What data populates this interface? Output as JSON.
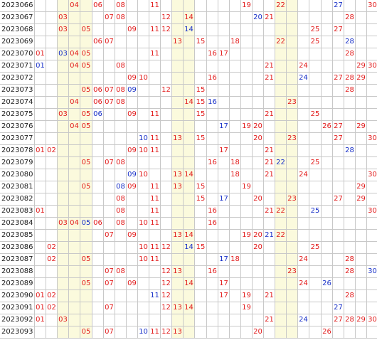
{
  "colors": {
    "red": "#e21b1b",
    "blue": "#1830c8",
    "highlight": "#fbfadd",
    "grid": "#c8c8c8"
  },
  "highlight_columns": [
    3,
    4,
    5,
    13,
    14,
    22,
    23
  ],
  "rows": [
    {
      "period": "2023066",
      "numbers": [
        {
          "n": "04",
          "c": "r"
        },
        {
          "n": "06",
          "c": "r"
        },
        {
          "n": "08",
          "c": "r"
        },
        {
          "n": "11",
          "c": "r"
        },
        {
          "n": "19",
          "c": "r"
        },
        {
          "n": "22",
          "c": "r"
        },
        {
          "n": "27",
          "c": "b"
        },
        {
          "n": "30",
          "c": "r"
        }
      ]
    },
    {
      "period": "2023067",
      "numbers": [
        {
          "n": "03",
          "c": "r"
        },
        {
          "n": "07",
          "c": "r"
        },
        {
          "n": "08",
          "c": "r"
        },
        {
          "n": "12",
          "c": "r"
        },
        {
          "n": "14",
          "c": "r"
        },
        {
          "n": "20",
          "c": "b"
        },
        {
          "n": "21",
          "c": "r"
        },
        {
          "n": "28",
          "c": "r"
        }
      ]
    },
    {
      "period": "2023068",
      "numbers": [
        {
          "n": "03",
          "c": "r"
        },
        {
          "n": "05",
          "c": "r"
        },
        {
          "n": "09",
          "c": "r"
        },
        {
          "n": "11",
          "c": "r"
        },
        {
          "n": "12",
          "c": "r"
        },
        {
          "n": "14",
          "c": "b"
        },
        {
          "n": "25",
          "c": "r"
        },
        {
          "n": "27",
          "c": "r"
        }
      ]
    },
    {
      "period": "2023069",
      "numbers": [
        {
          "n": "06",
          "c": "r"
        },
        {
          "n": "07",
          "c": "r"
        },
        {
          "n": "13",
          "c": "r"
        },
        {
          "n": "15",
          "c": "r"
        },
        {
          "n": "18",
          "c": "r"
        },
        {
          "n": "22",
          "c": "r"
        },
        {
          "n": "25",
          "c": "r"
        },
        {
          "n": "28",
          "c": "b"
        }
      ]
    },
    {
      "period": "2023070",
      "numbers": [
        {
          "n": "01",
          "c": "r"
        },
        {
          "n": "03",
          "c": "b"
        },
        {
          "n": "04",
          "c": "r"
        },
        {
          "n": "05",
          "c": "r"
        },
        {
          "n": "11",
          "c": "r"
        },
        {
          "n": "16",
          "c": "r"
        },
        {
          "n": "17",
          "c": "r"
        },
        {
          "n": "28",
          "c": "r"
        }
      ]
    },
    {
      "period": "2023071",
      "numbers": [
        {
          "n": "01",
          "c": "b"
        },
        {
          "n": "04",
          "c": "r"
        },
        {
          "n": "05",
          "c": "r"
        },
        {
          "n": "08",
          "c": "r"
        },
        {
          "n": "21",
          "c": "r"
        },
        {
          "n": "24",
          "c": "r"
        },
        {
          "n": "29",
          "c": "r"
        },
        {
          "n": "30",
          "c": "r"
        }
      ]
    },
    {
      "period": "2023072",
      "numbers": [
        {
          "n": "09",
          "c": "r"
        },
        {
          "n": "10",
          "c": "r"
        },
        {
          "n": "16",
          "c": "r"
        },
        {
          "n": "21",
          "c": "r"
        },
        {
          "n": "24",
          "c": "b"
        },
        {
          "n": "27",
          "c": "r"
        },
        {
          "n": "28",
          "c": "r"
        },
        {
          "n": "29",
          "c": "r"
        }
      ]
    },
    {
      "period": "2023073",
      "numbers": [
        {
          "n": "05",
          "c": "r"
        },
        {
          "n": "06",
          "c": "r"
        },
        {
          "n": "07",
          "c": "r"
        },
        {
          "n": "08",
          "c": "r"
        },
        {
          "n": "09",
          "c": "b"
        },
        {
          "n": "12",
          "c": "r"
        },
        {
          "n": "15",
          "c": "r"
        },
        {
          "n": "28",
          "c": "r"
        }
      ]
    },
    {
      "period": "2023074",
      "numbers": [
        {
          "n": "04",
          "c": "r"
        },
        {
          "n": "06",
          "c": "r"
        },
        {
          "n": "07",
          "c": "r"
        },
        {
          "n": "08",
          "c": "r"
        },
        {
          "n": "14",
          "c": "r"
        },
        {
          "n": "15",
          "c": "r"
        },
        {
          "n": "16",
          "c": "b"
        },
        {
          "n": "23",
          "c": "r"
        }
      ]
    },
    {
      "period": "2023075",
      "numbers": [
        {
          "n": "03",
          "c": "r"
        },
        {
          "n": "05",
          "c": "r"
        },
        {
          "n": "06",
          "c": "b"
        },
        {
          "n": "09",
          "c": "r"
        },
        {
          "n": "11",
          "c": "r"
        },
        {
          "n": "15",
          "c": "r"
        },
        {
          "n": "21",
          "c": "r"
        },
        {
          "n": "25",
          "c": "r"
        }
      ]
    },
    {
      "period": "2023076",
      "numbers": [
        {
          "n": "04",
          "c": "r"
        },
        {
          "n": "05",
          "c": "r"
        },
        {
          "n": "17",
          "c": "b"
        },
        {
          "n": "19",
          "c": "r"
        },
        {
          "n": "20",
          "c": "r"
        },
        {
          "n": "26",
          "c": "r"
        },
        {
          "n": "27",
          "c": "r"
        },
        {
          "n": "29",
          "c": "r"
        }
      ]
    },
    {
      "period": "2023077",
      "numbers": [
        {
          "n": "10",
          "c": "b"
        },
        {
          "n": "11",
          "c": "r"
        },
        {
          "n": "13",
          "c": "r"
        },
        {
          "n": "15",
          "c": "r"
        },
        {
          "n": "20",
          "c": "r"
        },
        {
          "n": "23",
          "c": "r"
        },
        {
          "n": "27",
          "c": "r"
        },
        {
          "n": "30",
          "c": "r"
        }
      ]
    },
    {
      "period": "2023078",
      "numbers": [
        {
          "n": "01",
          "c": "r"
        },
        {
          "n": "02",
          "c": "r"
        },
        {
          "n": "09",
          "c": "r"
        },
        {
          "n": "10",
          "c": "r"
        },
        {
          "n": "11",
          "c": "r"
        },
        {
          "n": "17",
          "c": "r"
        },
        {
          "n": "21",
          "c": "r"
        },
        {
          "n": "28",
          "c": "b"
        }
      ]
    },
    {
      "period": "2023079",
      "numbers": [
        {
          "n": "05",
          "c": "r"
        },
        {
          "n": "07",
          "c": "r"
        },
        {
          "n": "08",
          "c": "r"
        },
        {
          "n": "16",
          "c": "r"
        },
        {
          "n": "18",
          "c": "r"
        },
        {
          "n": "21",
          "c": "r"
        },
        {
          "n": "22",
          "c": "b"
        },
        {
          "n": "25",
          "c": "r"
        }
      ]
    },
    {
      "period": "2023080",
      "numbers": [
        {
          "n": "09",
          "c": "b"
        },
        {
          "n": "10",
          "c": "r"
        },
        {
          "n": "13",
          "c": "r"
        },
        {
          "n": "14",
          "c": "r"
        },
        {
          "n": "18",
          "c": "r"
        },
        {
          "n": "21",
          "c": "r"
        },
        {
          "n": "24",
          "c": "r"
        },
        {
          "n": "30",
          "c": "r"
        }
      ]
    },
    {
      "period": "2023081",
      "numbers": [
        {
          "n": "05",
          "c": "r"
        },
        {
          "n": "08",
          "c": "b"
        },
        {
          "n": "09",
          "c": "r"
        },
        {
          "n": "11",
          "c": "r"
        },
        {
          "n": "13",
          "c": "r"
        },
        {
          "n": "15",
          "c": "r"
        },
        {
          "n": "19",
          "c": "r"
        },
        {
          "n": "29",
          "c": "r"
        }
      ]
    },
    {
      "period": "2023082",
      "numbers": [
        {
          "n": "08",
          "c": "r"
        },
        {
          "n": "11",
          "c": "r"
        },
        {
          "n": "15",
          "c": "r"
        },
        {
          "n": "17",
          "c": "b"
        },
        {
          "n": "20",
          "c": "r"
        },
        {
          "n": "23",
          "c": "r"
        },
        {
          "n": "27",
          "c": "r"
        },
        {
          "n": "29",
          "c": "r"
        }
      ]
    },
    {
      "period": "2023083",
      "numbers": [
        {
          "n": "01",
          "c": "r"
        },
        {
          "n": "08",
          "c": "r"
        },
        {
          "n": "11",
          "c": "r"
        },
        {
          "n": "16",
          "c": "r"
        },
        {
          "n": "21",
          "c": "r"
        },
        {
          "n": "22",
          "c": "r"
        },
        {
          "n": "25",
          "c": "b"
        },
        {
          "n": "30",
          "c": "r"
        }
      ]
    },
    {
      "period": "2023084",
      "numbers": [
        {
          "n": "03",
          "c": "r"
        },
        {
          "n": "04",
          "c": "r"
        },
        {
          "n": "05",
          "c": "b"
        },
        {
          "n": "06",
          "c": "r"
        },
        {
          "n": "08",
          "c": "r"
        },
        {
          "n": "10",
          "c": "r"
        },
        {
          "n": "11",
          "c": "r"
        },
        {
          "n": "16",
          "c": "r"
        }
      ]
    },
    {
      "period": "2023085",
      "numbers": [
        {
          "n": "07",
          "c": "r"
        },
        {
          "n": "09",
          "c": "r"
        },
        {
          "n": "13",
          "c": "r"
        },
        {
          "n": "14",
          "c": "r"
        },
        {
          "n": "19",
          "c": "r"
        },
        {
          "n": "20",
          "c": "r"
        },
        {
          "n": "21",
          "c": "b"
        },
        {
          "n": "22",
          "c": "r"
        }
      ]
    },
    {
      "period": "2023086",
      "numbers": [
        {
          "n": "02",
          "c": "r"
        },
        {
          "n": "10",
          "c": "r"
        },
        {
          "n": "11",
          "c": "r"
        },
        {
          "n": "12",
          "c": "r"
        },
        {
          "n": "14",
          "c": "b"
        },
        {
          "n": "15",
          "c": "r"
        },
        {
          "n": "20",
          "c": "r"
        },
        {
          "n": "25",
          "c": "r"
        }
      ]
    },
    {
      "period": "2023087",
      "numbers": [
        {
          "n": "02",
          "c": "r"
        },
        {
          "n": "05",
          "c": "r"
        },
        {
          "n": "10",
          "c": "r"
        },
        {
          "n": "11",
          "c": "r"
        },
        {
          "n": "17",
          "c": "b"
        },
        {
          "n": "18",
          "c": "r"
        },
        {
          "n": "24",
          "c": "r"
        },
        {
          "n": "28",
          "c": "r"
        }
      ]
    },
    {
      "period": "2023088",
      "numbers": [
        {
          "n": "07",
          "c": "r"
        },
        {
          "n": "08",
          "c": "r"
        },
        {
          "n": "12",
          "c": "r"
        },
        {
          "n": "13",
          "c": "r"
        },
        {
          "n": "16",
          "c": "r"
        },
        {
          "n": "23",
          "c": "r"
        },
        {
          "n": "28",
          "c": "r"
        },
        {
          "n": "30",
          "c": "b"
        }
      ]
    },
    {
      "period": "2023089",
      "numbers": [
        {
          "n": "05",
          "c": "r"
        },
        {
          "n": "07",
          "c": "r"
        },
        {
          "n": "09",
          "c": "r"
        },
        {
          "n": "12",
          "c": "r"
        },
        {
          "n": "14",
          "c": "r"
        },
        {
          "n": "17",
          "c": "r"
        },
        {
          "n": "24",
          "c": "r"
        },
        {
          "n": "26",
          "c": "b"
        }
      ]
    },
    {
      "period": "2023090",
      "numbers": [
        {
          "n": "01",
          "c": "r"
        },
        {
          "n": "02",
          "c": "r"
        },
        {
          "n": "11",
          "c": "b"
        },
        {
          "n": "12",
          "c": "r"
        },
        {
          "n": "17",
          "c": "r"
        },
        {
          "n": "19",
          "c": "r"
        },
        {
          "n": "21",
          "c": "r"
        },
        {
          "n": "28",
          "c": "r"
        }
      ]
    },
    {
      "period": "2023091",
      "numbers": [
        {
          "n": "01",
          "c": "r"
        },
        {
          "n": "02",
          "c": "r"
        },
        {
          "n": "07",
          "c": "r"
        },
        {
          "n": "12",
          "c": "r"
        },
        {
          "n": "13",
          "c": "r"
        },
        {
          "n": "14",
          "c": "r"
        },
        {
          "n": "19",
          "c": "r"
        },
        {
          "n": "27",
          "c": "b"
        }
      ]
    },
    {
      "period": "2023092",
      "numbers": [
        {
          "n": "01",
          "c": "r"
        },
        {
          "n": "03",
          "c": "r"
        },
        {
          "n": "21",
          "c": "r"
        },
        {
          "n": "24",
          "c": "b"
        },
        {
          "n": "27",
          "c": "r"
        },
        {
          "n": "28",
          "c": "r"
        },
        {
          "n": "29",
          "c": "r"
        },
        {
          "n": "30",
          "c": "r"
        }
      ]
    },
    {
      "period": "2023093",
      "numbers": [
        {
          "n": "05",
          "c": "r"
        },
        {
          "n": "07",
          "c": "r"
        },
        {
          "n": "10",
          "c": "b"
        },
        {
          "n": "11",
          "c": "r"
        },
        {
          "n": "12",
          "c": "r"
        },
        {
          "n": "13",
          "c": "r"
        },
        {
          "n": "20",
          "c": "r"
        },
        {
          "n": "26",
          "c": "r"
        }
      ]
    }
  ]
}
